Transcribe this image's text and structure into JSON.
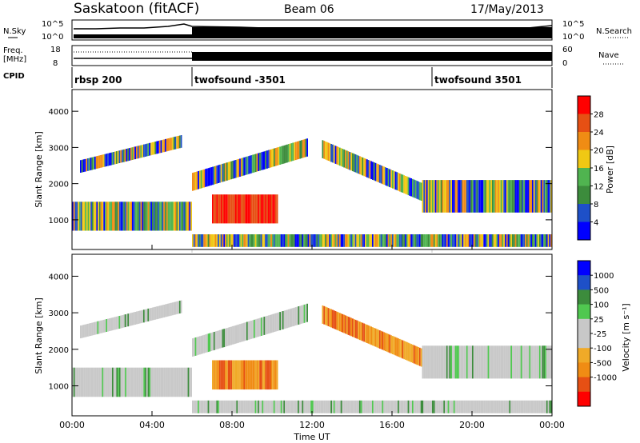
{
  "header": {
    "station": "Saskatoon (fitACF)",
    "beam": "Beam 06",
    "date": "17/May/2013"
  },
  "strip_labels": {
    "nsky": "N.Sky",
    "nsky_ticks": [
      "10^5",
      "10^0"
    ],
    "nsearch": "N.Search",
    "nsearch_ticks": [
      "10^5",
      "10^0"
    ],
    "freq": "Freq.",
    "freq_unit": "[MHz]",
    "freq_ticks": [
      "18",
      "8"
    ],
    "nave": "Nave",
    "nave_ticks": [
      "60",
      "0"
    ],
    "cpid": "CPID"
  },
  "cpid_segments": [
    {
      "label": "rbsp 200",
      "start_h": 0
    },
    {
      "label": "twofsound -3501",
      "start_h": 6
    },
    {
      "label": "twofsound 3501",
      "start_h": 18
    }
  ],
  "colors": {
    "power": [
      "#0000ff",
      "#1e50c8",
      "#3c8c3c",
      "#50b450",
      "#f0c814",
      "#f08c14",
      "#e65014",
      "#ff0000"
    ],
    "velocity": [
      "#ff0000",
      "#e65014",
      "#f08c14",
      "#f0aa28",
      "#c8c8c8",
      "#c8c8c8",
      "#50c850",
      "#3c8c3c",
      "#1e50c8",
      "#0000ff"
    ]
  },
  "chart_data": [
    {
      "type": "heatmap",
      "panel": "power",
      "ylabel": "Slant Range [km]",
      "ylim": [
        180,
        4600
      ],
      "yticks": [
        "1000",
        "2000",
        "3000",
        "4000"
      ],
      "xlim": [
        0,
        24
      ],
      "xticks": [
        "00:00",
        "04:00",
        "08:00",
        "12:00",
        "16:00",
        "20:00",
        "00:00"
      ],
      "colorbar_label": "Power [dB]",
      "colorbar_ticks": [
        "4",
        "8",
        "12",
        "16",
        "20",
        "24",
        "28"
      ],
      "colorbar_range": [
        0,
        32
      ],
      "echo_regions": [
        {
          "name": "lower band",
          "t0": 0.0,
          "t1": 6.0,
          "r0": 700,
          "r1": 1500
        },
        {
          "name": "upper band",
          "t0": 0.4,
          "t1": 5.5,
          "r0": 2300,
          "r1": 3300
        },
        {
          "name": "central patch",
          "t0": 7.0,
          "t1": 10.3,
          "r0": 900,
          "r1": 1700
        },
        {
          "name": "rising arc",
          "t0": 6.0,
          "t1": 11.8,
          "r0": 1800,
          "r1": 3400
        },
        {
          "name": "descending arc",
          "t0": 12.5,
          "t1": 17.5,
          "r0": 1500,
          "r1": 3200
        },
        {
          "name": "late band",
          "t0": 17.5,
          "t1": 24.0,
          "r0": 1200,
          "r1": 2100
        },
        {
          "name": "near range",
          "t0": 6.0,
          "t1": 24.0,
          "r0": 250,
          "r1": 600
        }
      ]
    },
    {
      "type": "heatmap",
      "panel": "velocity",
      "ylabel": "Slant Range [km]",
      "ylim": [
        180,
        4600
      ],
      "yticks": [
        "1000",
        "2000",
        "3000",
        "4000"
      ],
      "xlim": [
        0,
        24
      ],
      "xlabel": "Time UT",
      "xticks": [
        "00:00",
        "04:00",
        "08:00",
        "12:00",
        "16:00",
        "20:00",
        "00:00"
      ],
      "colorbar_label": "Velocity [m s⁻¹]",
      "colorbar_ticks": [
        "1000",
        "500",
        "100",
        "25",
        "-25",
        "-100",
        "-500",
        "-1000"
      ],
      "echo_regions": [
        {
          "name": "lower band",
          "t0": 0.0,
          "t1": 6.0,
          "r0": 700,
          "r1": 1500,
          "velocity": "ground"
        },
        {
          "name": "upper band",
          "t0": 0.4,
          "t1": 5.5,
          "r0": 2300,
          "r1": 3300,
          "velocity": "ground"
        },
        {
          "name": "central patch",
          "t0": 7.0,
          "t1": 10.3,
          "r0": 900,
          "r1": 1700,
          "velocity": "-100"
        },
        {
          "name": "rising arc",
          "t0": 6.0,
          "t1": 11.8,
          "r0": 1800,
          "r1": 3400,
          "velocity": "ground"
        },
        {
          "name": "descending arc",
          "t0": 12.5,
          "t1": 17.5,
          "r0": 1500,
          "r1": 3200,
          "velocity": "-100"
        },
        {
          "name": "late band",
          "t0": 17.5,
          "t1": 24.0,
          "r0": 1200,
          "r1": 2100,
          "velocity": "ground"
        },
        {
          "name": "near range",
          "t0": 6.0,
          "t1": 24.0,
          "r0": 250,
          "r1": 600,
          "velocity": "ground"
        }
      ]
    }
  ]
}
